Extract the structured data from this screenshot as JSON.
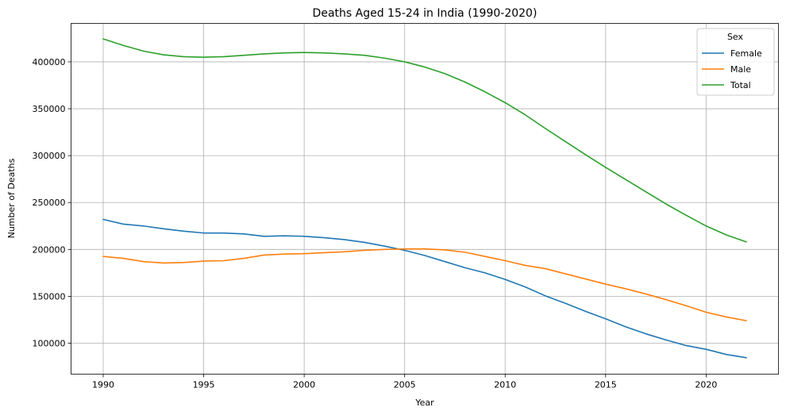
{
  "chart_data": {
    "type": "line",
    "title": "Deaths Aged 15-24 in India (1990-2020)",
    "xlabel": "Year",
    "ylabel": "Number of Deaths",
    "xlim": [
      1988.4,
      2023.6
    ],
    "ylim": [
      67000,
      441000
    ],
    "xticks": [
      1990,
      1995,
      2000,
      2005,
      2010,
      2015,
      2020
    ],
    "yticks": [
      100000,
      150000,
      200000,
      250000,
      300000,
      350000,
      400000
    ],
    "grid": true,
    "legend": {
      "title": "Sex",
      "placement": "top-right"
    },
    "x": [
      1990,
      1991,
      1992,
      1993,
      1994,
      1995,
      1996,
      1997,
      1998,
      1999,
      2000,
      2001,
      2002,
      2003,
      2004,
      2005,
      2006,
      2007,
      2008,
      2009,
      2010,
      2011,
      2012,
      2013,
      2014,
      2015,
      2016,
      2017,
      2018,
      2019,
      2020,
      2021,
      2022
    ],
    "series": [
      {
        "name": "Female",
        "color": "#1f77b4",
        "values": [
          232000,
          227000,
          225000,
          222000,
          219500,
          217500,
          217500,
          216500,
          214000,
          214500,
          214000,
          212500,
          210500,
          207500,
          203500,
          199000,
          193500,
          187000,
          180500,
          175000,
          168000,
          160000,
          150500,
          142500,
          134000,
          126000,
          117500,
          110000,
          103500,
          97500,
          93500,
          88000,
          84500
        ]
      },
      {
        "name": "Male",
        "color": "#ff7f0e",
        "values": [
          192500,
          190500,
          187000,
          185500,
          186000,
          187500,
          188000,
          190500,
          194000,
          195000,
          195500,
          196500,
          197500,
          199000,
          200000,
          200500,
          200500,
          199500,
          197000,
          192500,
          188000,
          183000,
          179500,
          174000,
          168500,
          163000,
          158000,
          152500,
          146500,
          140000,
          133000,
          128000,
          124000
        ]
      },
      {
        "name": "Total",
        "color": "#2ca02c",
        "values": [
          424500,
          417500,
          411500,
          407500,
          405500,
          405000,
          405500,
          407000,
          408500,
          409500,
          410000,
          409500,
          408500,
          407000,
          404000,
          400000,
          394500,
          387500,
          378500,
          368000,
          356500,
          343500,
          329000,
          315000,
          301000,
          287500,
          274500,
          261500,
          248500,
          236500,
          225000,
          215500,
          208000
        ]
      }
    ]
  }
}
